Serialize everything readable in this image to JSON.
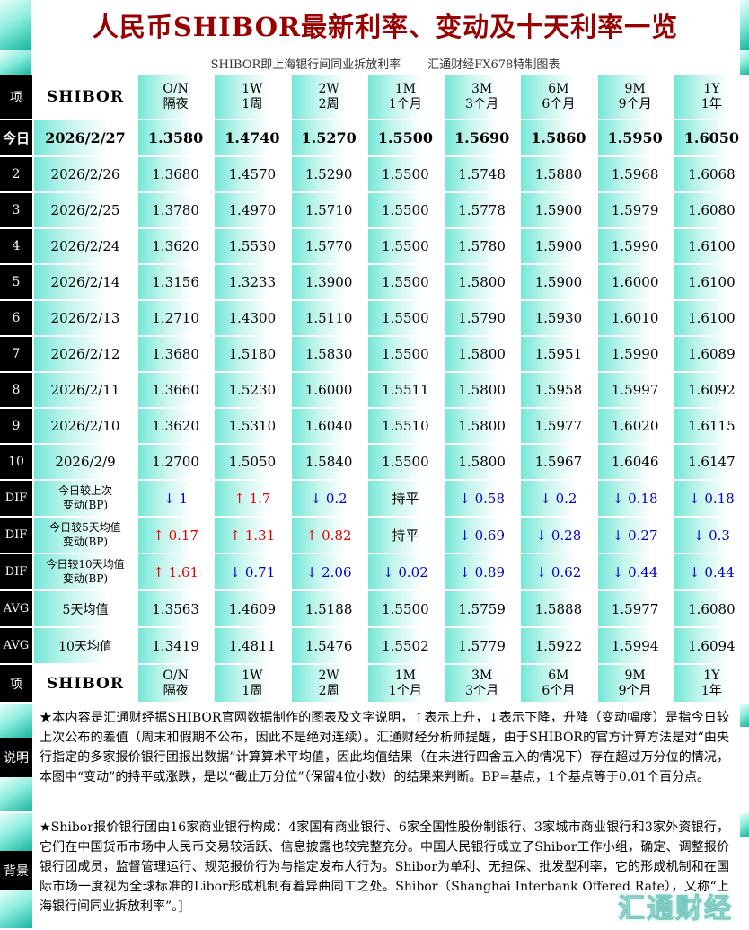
{
  "title": "人民币SHIBOR最新利率、变动及十天利率一览",
  "subtitle": {
    "left": "SHIBOR即上海银行间同业拆放利率",
    "right": "汇通财经FX678特制图表"
  },
  "watermark": "汇通财经",
  "colors": {
    "title_red": "#990000",
    "up_red": "#e60000",
    "down_blue": "#0000cc",
    "teal": "#74e7d7",
    "index_black": "#000000"
  },
  "header": {
    "corner": "项",
    "name": "SHIBOR",
    "tenors": [
      {
        "code": "O/N",
        "label": "隔夜"
      },
      {
        "code": "1W",
        "label": "1周"
      },
      {
        "code": "2W",
        "label": "2周"
      },
      {
        "code": "1M",
        "label": "1个月"
      },
      {
        "code": "3M",
        "label": "3个月"
      },
      {
        "code": "6M",
        "label": "6个月"
      },
      {
        "code": "9M",
        "label": "9个月"
      },
      {
        "code": "1Y",
        "label": "1年"
      }
    ]
  },
  "chart_data": {
    "type": "table",
    "title": "人民币SHIBOR最新利率、变动及十天利率一览",
    "columns": [
      "项",
      "SHIBOR",
      "O/N 隔夜",
      "1W 1周",
      "2W 2周",
      "1M 1个月",
      "3M 3个月",
      "6M 6个月",
      "9M 9个月",
      "1Y 1年"
    ],
    "arrows": {
      "up": "↑",
      "down": "↓"
    },
    "rate_rows": [
      {
        "idx": "今日",
        "date": "2026/2/27",
        "bold": true,
        "values": [
          "1.3580",
          "1.4740",
          "1.5270",
          "1.5500",
          "1.5690",
          "1.5860",
          "1.5950",
          "1.6050"
        ]
      },
      {
        "idx": "2",
        "date": "2026/2/26",
        "bold": false,
        "values": [
          "1.3680",
          "1.4570",
          "1.5290",
          "1.5500",
          "1.5748",
          "1.5880",
          "1.5968",
          "1.6068"
        ]
      },
      {
        "idx": "3",
        "date": "2026/2/25",
        "bold": false,
        "values": [
          "1.3780",
          "1.4970",
          "1.5710",
          "1.5500",
          "1.5778",
          "1.5900",
          "1.5979",
          "1.6080"
        ]
      },
      {
        "idx": "4",
        "date": "2026/2/24",
        "bold": false,
        "values": [
          "1.3620",
          "1.5530",
          "1.5770",
          "1.5500",
          "1.5780",
          "1.5900",
          "1.5990",
          "1.6100"
        ]
      },
      {
        "idx": "5",
        "date": "2026/2/14",
        "bold": false,
        "values": [
          "1.3156",
          "1.3233",
          "1.3900",
          "1.5500",
          "1.5800",
          "1.5900",
          "1.6000",
          "1.6100"
        ]
      },
      {
        "idx": "6",
        "date": "2026/2/13",
        "bold": false,
        "values": [
          "1.2710",
          "1.4300",
          "1.5110",
          "1.5500",
          "1.5790",
          "1.5930",
          "1.6010",
          "1.6100"
        ]
      },
      {
        "idx": "7",
        "date": "2026/2/12",
        "bold": false,
        "values": [
          "1.3680",
          "1.5180",
          "1.5830",
          "1.5500",
          "1.5800",
          "1.5951",
          "1.5990",
          "1.6089"
        ]
      },
      {
        "idx": "8",
        "date": "2026/2/11",
        "bold": false,
        "values": [
          "1.3660",
          "1.5230",
          "1.6000",
          "1.5511",
          "1.5800",
          "1.5958",
          "1.5997",
          "1.6092"
        ]
      },
      {
        "idx": "9",
        "date": "2026/2/10",
        "bold": false,
        "values": [
          "1.3620",
          "1.5310",
          "1.6040",
          "1.5510",
          "1.5800",
          "1.5977",
          "1.6020",
          "1.6115"
        ]
      },
      {
        "idx": "10",
        "date": "2026/2/9",
        "bold": false,
        "values": [
          "1.2700",
          "1.5050",
          "1.5840",
          "1.5500",
          "1.5800",
          "1.5967",
          "1.6046",
          "1.6147"
        ]
      }
    ],
    "dif_rows": [
      {
        "idx": "DIF",
        "label": "今日较上次\n变动(BP)",
        "cells": [
          {
            "dir": "down",
            "value": "1"
          },
          {
            "dir": "up",
            "value": "1.7"
          },
          {
            "dir": "down",
            "value": "0.2"
          },
          {
            "dir": "flat",
            "value": "持平"
          },
          {
            "dir": "down",
            "value": "0.58"
          },
          {
            "dir": "down",
            "value": "0.2"
          },
          {
            "dir": "down",
            "value": "0.18"
          },
          {
            "dir": "down",
            "value": "0.18"
          }
        ]
      },
      {
        "idx": "DIF",
        "label": "今日较5天均值\n变动(BP)",
        "cells": [
          {
            "dir": "up",
            "value": "0.17"
          },
          {
            "dir": "up",
            "value": "1.31"
          },
          {
            "dir": "up",
            "value": "0.82"
          },
          {
            "dir": "flat",
            "value": "持平"
          },
          {
            "dir": "down",
            "value": "0.69"
          },
          {
            "dir": "down",
            "value": "0.28"
          },
          {
            "dir": "down",
            "value": "0.27"
          },
          {
            "dir": "down",
            "value": "0.3"
          }
        ]
      },
      {
        "idx": "DIF",
        "label": "今日较10天均值\n变动(BP)",
        "cells": [
          {
            "dir": "up",
            "value": "1.61"
          },
          {
            "dir": "down",
            "value": "0.71"
          },
          {
            "dir": "down",
            "value": "2.06"
          },
          {
            "dir": "down",
            "value": "0.02"
          },
          {
            "dir": "down",
            "value": "0.89"
          },
          {
            "dir": "down",
            "value": "0.62"
          },
          {
            "dir": "down",
            "value": "0.44"
          },
          {
            "dir": "down",
            "value": "0.44"
          }
        ]
      }
    ],
    "avg_rows": [
      {
        "idx": "AVG",
        "label": "5天均值",
        "values": [
          "1.3563",
          "1.4609",
          "1.5188",
          "1.5500",
          "1.5759",
          "1.5888",
          "1.5977",
          "1.6080"
        ]
      },
      {
        "idx": "AVG",
        "label": "10天均值",
        "values": [
          "1.3419",
          "1.4811",
          "1.5476",
          "1.5502",
          "1.5779",
          "1.5922",
          "1.5994",
          "1.6094"
        ]
      }
    ]
  },
  "notes": [
    {
      "label": "说明",
      "text": "★本内容是汇通财经据SHIBOR官网数据制作的图表及文字说明，↑表示上升，↓表示下降，升降（变动幅度）是指今日较上次公布的差值（周末和假期不公布，因此不是绝对连续）。汇通财经分析师提醒，由于SHIBOR的官方计算方法是对“由央行指定的多家报价银行团报出数据”计算算术平均值，因此均值结果（在未进行四舍五入的情况下）存在超过万分位的情况，本图中“变动”的持平或涨跌，是以“截止万分位”（保留4位小数）的结果来判断。BP=基点，1个基点等于0.01个百分点。"
    },
    {
      "label": "背景",
      "text": "★Shibor报价银行团由16家商业银行构成：4家国有商业银行、6家全国性股份制银行、3家城市商业银行和3家外资银行，它们在中国货币市场中人民币交易较活跃、信息披露也较完整充分。中国人民银行成立了Shibor工作小组，确定、调整报价银行团成员，监督管理运行、规范报价行为与指定发布人行为。Shibor为单利、无担保、批发型利率，它的形成机制和在国际市场一度视为全球标准的Libor形成机制有着异曲同工之处。Shibor（Shanghai Interbank Offered Rate），又称“上海银行间同业拆放利率”。]"
    }
  ]
}
